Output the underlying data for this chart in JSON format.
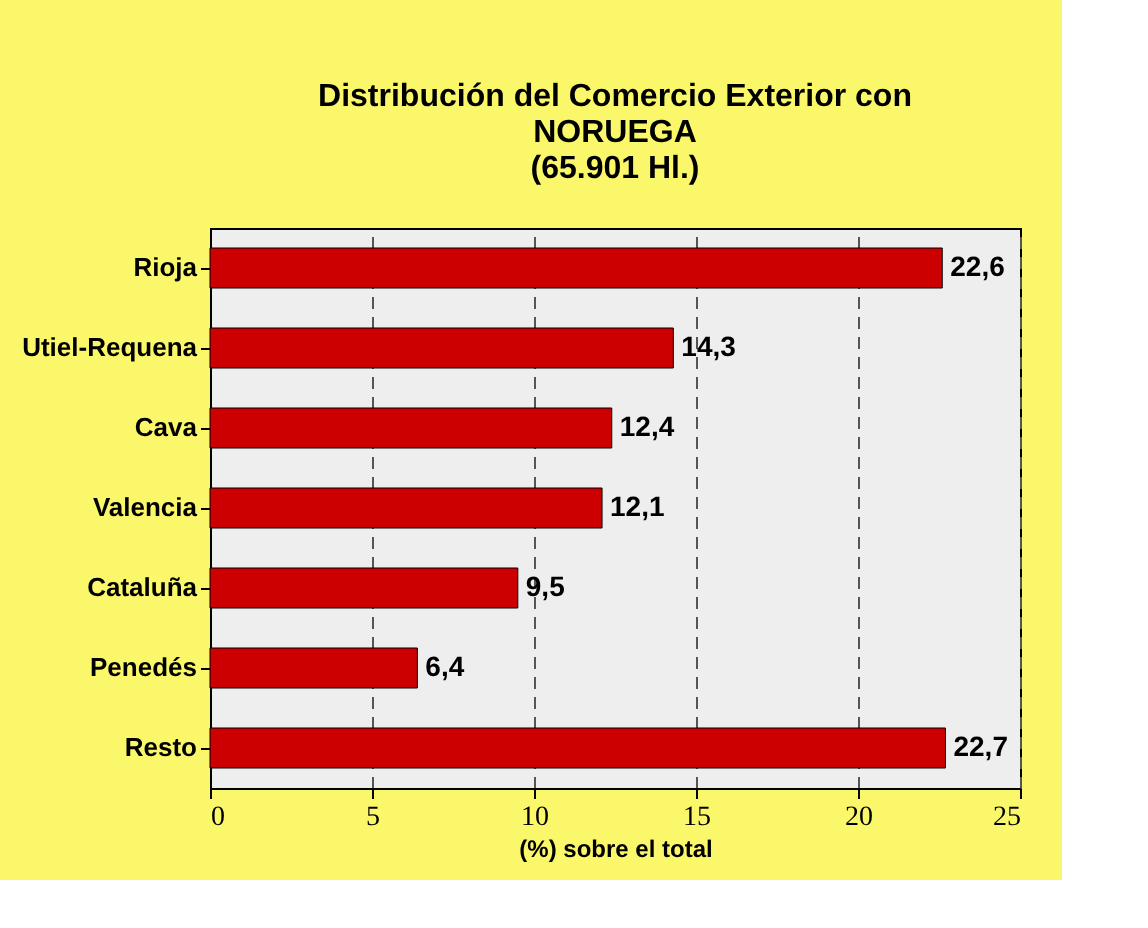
{
  "chart_data": {
    "type": "bar",
    "orientation": "horizontal",
    "title": [
      "Distribución del Comercio Exterior con",
      "NORUEGA",
      "(65.901 Hl.)"
    ],
    "categories": [
      "Rioja",
      "Utiel-Requena",
      "Cava",
      "Valencia",
      "Cataluña",
      "Penedés",
      "Resto"
    ],
    "values": [
      22.6,
      14.3,
      12.4,
      12.1,
      9.5,
      6.4,
      22.7
    ],
    "value_labels": [
      "22,6",
      "14,3",
      "12,4",
      "12,1",
      "9,5",
      "6,4",
      "22,7"
    ],
    "color": "#cc0000",
    "xlabel": "(%) sobre el total",
    "xlim": [
      0,
      25
    ],
    "xticks": [
      0,
      5,
      10,
      15,
      20,
      25
    ],
    "grid": "x"
  }
}
